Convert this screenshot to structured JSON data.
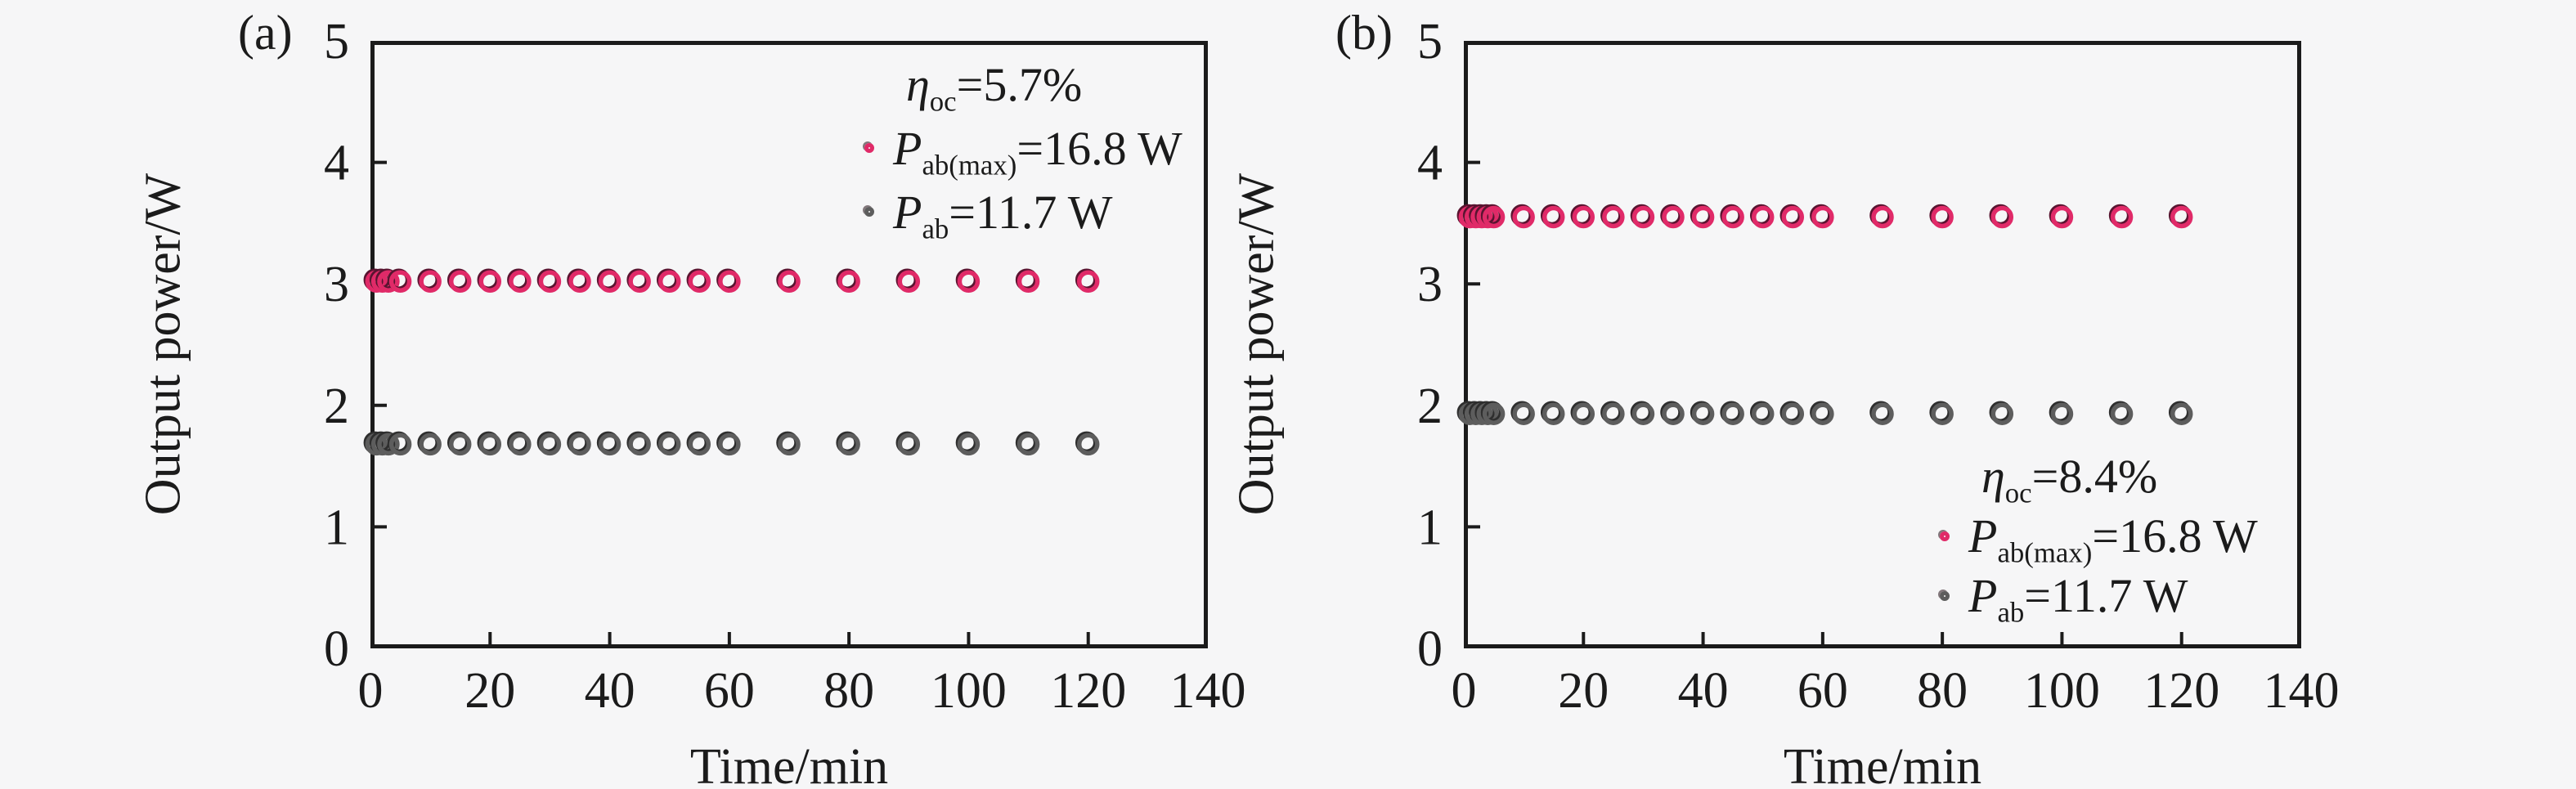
{
  "figure": {
    "background_color": "#f6f6f7",
    "axis_color": "#1b1b1b",
    "accent_pink": "#e02a68",
    "accent_gray": "#5d5d5d"
  },
  "chart_data": [
    {
      "id": "a",
      "type": "scatter",
      "panel_label": "(a)",
      "xlabel": "Time/min",
      "ylabel": "Output power/W",
      "xlim": [
        0,
        140
      ],
      "ylim": [
        0,
        5
      ],
      "xticks": [
        0,
        20,
        40,
        60,
        80,
        100,
        120,
        140
      ],
      "yticks": [
        0,
        1,
        2,
        3,
        4,
        5
      ],
      "grid": false,
      "legend_position": "top-right-inside",
      "efficiency": {
        "symbol": "η",
        "sub": "oc",
        "rest": "=5.7%",
        "label": "η_oc=5.7%"
      },
      "series": [
        {
          "id": "pabmax",
          "label": "P_ab(max)=16.8 W",
          "symbol": "P",
          "sub": "ab(max)",
          "rest": "=16.8 W",
          "marker": "open-circle",
          "color": "#e02a68",
          "shadow_color": "#591430",
          "x": [
            1,
            2,
            3,
            5,
            10,
            15,
            20,
            25,
            30,
            35,
            40,
            45,
            50,
            55,
            60,
            70,
            80,
            90,
            100,
            110,
            120
          ],
          "y": [
            3.02,
            3.02,
            3.02,
            3.02,
            3.02,
            3.02,
            3.02,
            3.02,
            3.02,
            3.02,
            3.02,
            3.02,
            3.02,
            3.02,
            3.02,
            3.02,
            3.02,
            3.02,
            3.02,
            3.02,
            3.02
          ]
        },
        {
          "id": "pab",
          "label": "P_ab=11.7 W",
          "symbol": "P",
          "sub": "ab",
          "rest": "=11.7 W",
          "marker": "open-circle",
          "color": "#5d5d5d",
          "shadow_color": "#2e2e2e",
          "x": [
            1,
            2,
            3,
            5,
            10,
            15,
            20,
            25,
            30,
            35,
            40,
            45,
            50,
            55,
            60,
            70,
            80,
            90,
            100,
            110,
            120
          ],
          "y": [
            1.68,
            1.68,
            1.68,
            1.68,
            1.68,
            1.68,
            1.68,
            1.68,
            1.68,
            1.68,
            1.68,
            1.68,
            1.68,
            1.68,
            1.68,
            1.68,
            1.68,
            1.68,
            1.68,
            1.68,
            1.68
          ]
        }
      ]
    },
    {
      "id": "b",
      "type": "scatter",
      "panel_label": "(b)",
      "xlabel": "Time/min",
      "ylabel": "Output power/W",
      "xlim": [
        0,
        140
      ],
      "ylim": [
        0,
        5
      ],
      "xticks": [
        0,
        20,
        40,
        60,
        80,
        100,
        120,
        140
      ],
      "yticks": [
        0,
        1,
        2,
        3,
        4,
        5
      ],
      "grid": false,
      "legend_position": "bottom-right-inside",
      "efficiency": {
        "symbol": "η",
        "sub": "oc",
        "rest": "=8.4%",
        "label": "η_oc=8.4%"
      },
      "series": [
        {
          "id": "pabmax",
          "label": "P_ab(max)=16.8 W",
          "symbol": "P",
          "sub": "ab(max)",
          "rest": "=16.8 W",
          "marker": "open-circle",
          "color": "#e02a68",
          "shadow_color": "#591430",
          "x": [
            1,
            2,
            3,
            4,
            5,
            10,
            15,
            20,
            25,
            30,
            35,
            40,
            45,
            50,
            55,
            60,
            70,
            80,
            90,
            100,
            110,
            120
          ],
          "y": [
            3.55,
            3.55,
            3.55,
            3.55,
            3.55,
            3.55,
            3.55,
            3.55,
            3.55,
            3.55,
            3.55,
            3.55,
            3.55,
            3.55,
            3.55,
            3.55,
            3.55,
            3.55,
            3.55,
            3.55,
            3.55,
            3.55
          ]
        },
        {
          "id": "pab",
          "label": "P_ab=11.7 W",
          "symbol": "P",
          "sub": "ab",
          "rest": "=11.7 W",
          "marker": "open-circle",
          "color": "#5d5d5d",
          "shadow_color": "#2e2e2e",
          "x": [
            1,
            2,
            3,
            4,
            5,
            10,
            15,
            20,
            25,
            30,
            35,
            40,
            45,
            50,
            55,
            60,
            70,
            80,
            90,
            100,
            110,
            120
          ],
          "y": [
            1.93,
            1.93,
            1.93,
            1.93,
            1.93,
            1.93,
            1.93,
            1.93,
            1.93,
            1.93,
            1.93,
            1.93,
            1.93,
            1.93,
            1.93,
            1.93,
            1.93,
            1.93,
            1.93,
            1.93,
            1.93,
            1.93
          ]
        }
      ]
    }
  ]
}
